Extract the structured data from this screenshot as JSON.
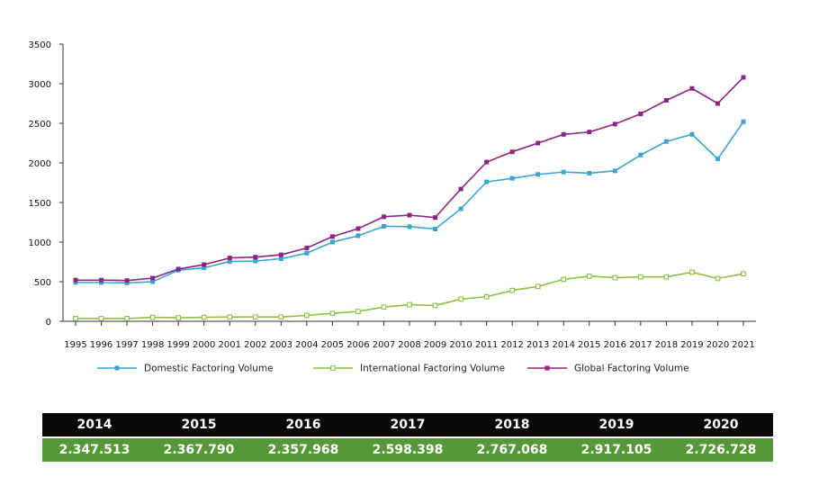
{
  "chart_data": {
    "type": "line",
    "x": [
      "1995",
      "1996",
      "1997",
      "1998",
      "1999",
      "2000",
      "2001",
      "2002",
      "2003",
      "2004",
      "2005",
      "2006",
      "2007",
      "2008",
      "2009",
      "2010",
      "2011",
      "2012",
      "2013",
      "2014",
      "2015",
      "2016",
      "2017",
      "2018",
      "2019",
      "2020",
      "2021"
    ],
    "yticks": [
      "0",
      "500",
      "1000",
      "1500",
      "2000",
      "2500",
      "3000",
      "3500"
    ],
    "ylim": [
      0,
      3500
    ],
    "series": [
      {
        "name": "Domestic Factoring Volume",
        "color": "#3aa6d0",
        "marker": "square",
        "values": [
          490,
          490,
          485,
          500,
          645,
          675,
          755,
          760,
          790,
          860,
          1000,
          1080,
          1200,
          1195,
          1165,
          1420,
          1760,
          1805,
          1855,
          1885,
          1870,
          1900,
          2100,
          2270,
          2360,
          2050,
          2520
        ]
      },
      {
        "name": "International Factoring Volume",
        "color": "#8cbf45",
        "marker": "hollow-square",
        "values": [
          35,
          35,
          35,
          50,
          45,
          50,
          55,
          55,
          55,
          75,
          100,
          125,
          180,
          210,
          200,
          280,
          310,
          390,
          440,
          530,
          570,
          550,
          560,
          560,
          620,
          540,
          600
        ]
      },
      {
        "name": "Global Factoring Volume",
        "color": "#8c2484",
        "marker": "square",
        "values": [
          520,
          520,
          515,
          545,
          660,
          715,
          800,
          810,
          840,
          925,
          1070,
          1170,
          1320,
          1340,
          1310,
          1670,
          2010,
          2140,
          2250,
          2360,
          2390,
          2490,
          2620,
          2790,
          2940,
          2750,
          3080
        ]
      }
    ],
    "legend_position": "bottom",
    "grid": false
  },
  "table": {
    "years": [
      "2014",
      "2015",
      "2016",
      "2017",
      "2018",
      "2019",
      "2020"
    ],
    "values": [
      "2.347.513",
      "2.367.790",
      "2.357.968",
      "2.598.398",
      "2.767.068",
      "2.917.105",
      "2.726.728"
    ]
  }
}
